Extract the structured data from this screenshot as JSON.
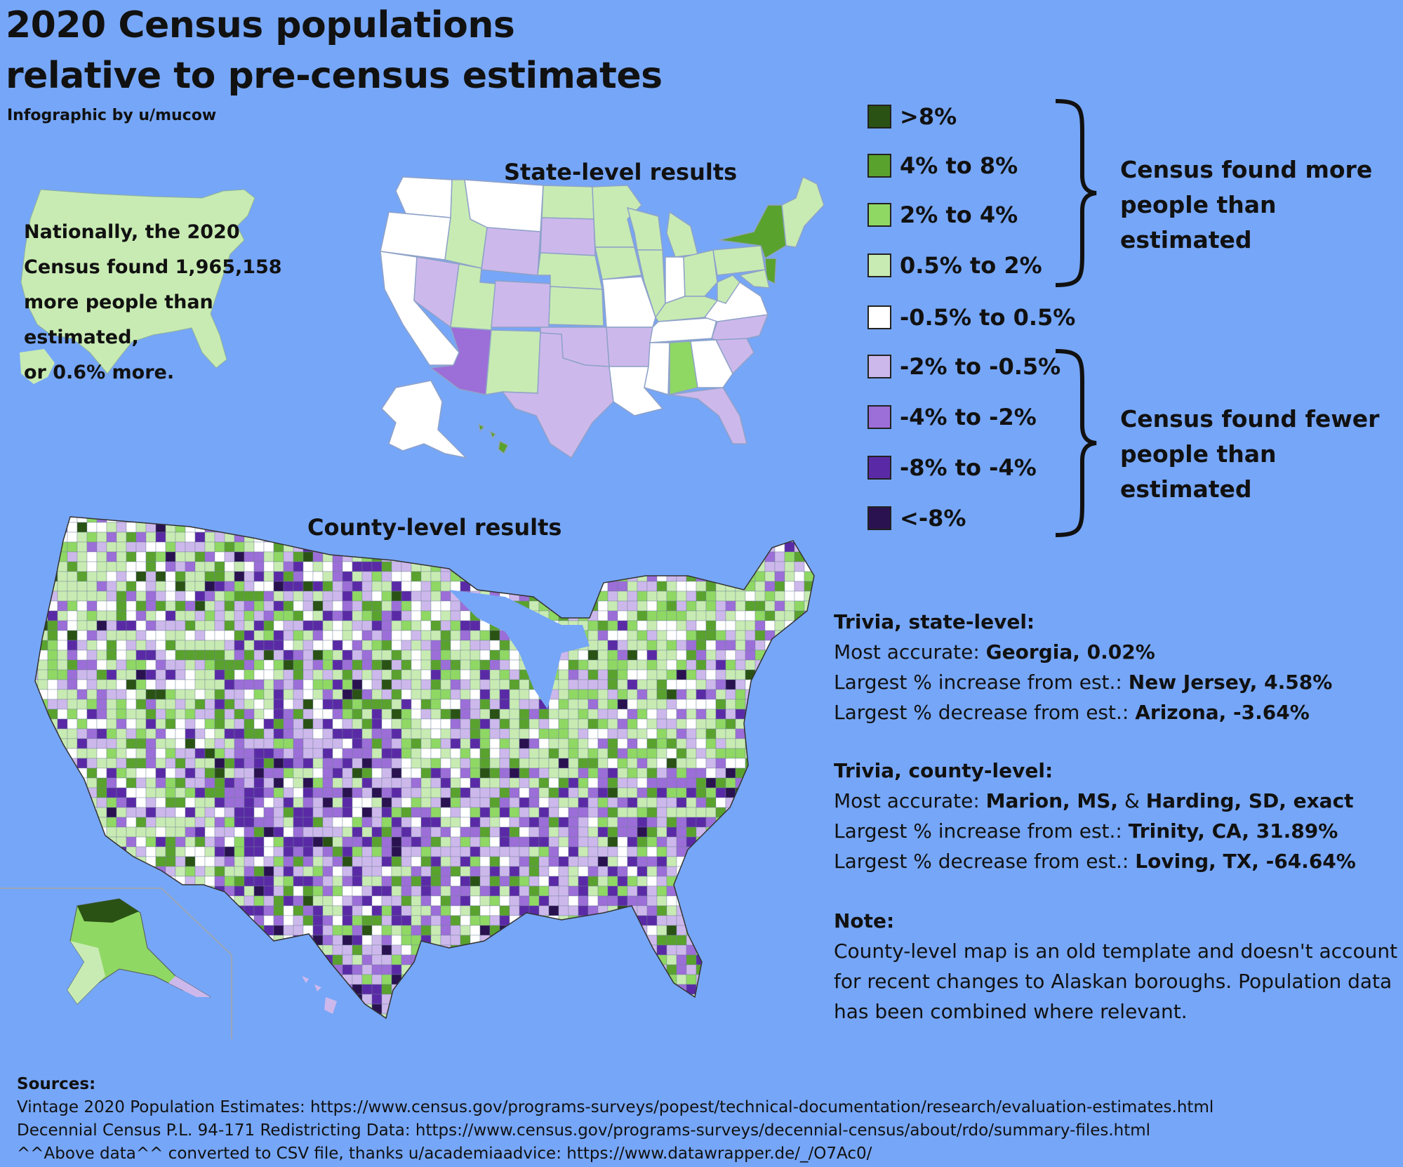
{
  "title_line1": "2020 Census populations",
  "title_line2": "relative to pre-census estimates",
  "byline": "Infographic by u/mucow",
  "national": {
    "line1": "Nationally, the 2020",
    "line2": "Census found 1,965,158",
    "line3": "more people than estimated,",
    "line4": "or 0.6% more."
  },
  "state_map_title": "State-level results",
  "county_map_title": "County-level results",
  "legend": [
    {
      "label": ">8%",
      "color": "#2a5214"
    },
    {
      "label": "4% to 8%",
      "color": "#5aa22e"
    },
    {
      "label": "2% to 4%",
      "color": "#8fd864"
    },
    {
      "label": "0.5% to 2%",
      "color": "#c8ebb3"
    },
    {
      "label": "-0.5% to 0.5%",
      "color": "#ffffff"
    },
    {
      "label": "-2% to -0.5%",
      "color": "#cdb8ec"
    },
    {
      "label": "-4% to -2%",
      "color": "#9c6ed8"
    },
    {
      "label": "-8% to -4%",
      "color": "#5a2aa6"
    },
    {
      "label": "<-8%",
      "color": "#2a1250"
    }
  ],
  "brace_more": {
    "line1": "Census found more",
    "line2": "people than estimated"
  },
  "brace_fewer": {
    "line1": "Census found fewer",
    "line2": "people than estimated"
  },
  "trivia_state": {
    "heading": "Trivia, state-level:",
    "l1_prefix": "Most accurate: ",
    "l1_value": "Georgia, 0.02%",
    "l2_prefix": "Largest % increase from est.: ",
    "l2_value": "New Jersey, 4.58%",
    "l3_prefix": "Largest % decrease from est.: ",
    "l3_value": "Arizona, -3.64%"
  },
  "trivia_county": {
    "heading": "Trivia, county-level:",
    "l1_prefix": "Most accurate: ",
    "l1_value_a": "Marion, MS,",
    "l1_amp": " & ",
    "l1_value_b": "Harding, SD, exact",
    "l2_prefix": "Largest % increase from est.: ",
    "l2_value": "Trinity, CA, 31.89%",
    "l3_prefix": "Largest % decrease from est.: ",
    "l3_value": "Loving, TX, -64.64%"
  },
  "note": {
    "heading": "Note:",
    "line1": "County-level map is an old template and doesn't account",
    "line2": "for recent changes to Alaskan boroughs. Population data",
    "line3": "has been combined where relevant."
  },
  "sources": {
    "heading": "Sources:",
    "line1": "Vintage 2020 Population Estimates: https://www.census.gov/programs-surveys/popest/technical-documentation/research/evaluation-estimates.html",
    "line2": "Decennial Census P.L. 94-171 Redistricting Data: https://www.census.gov/programs-surveys/decennial-census/about/rdo/summary-files.html",
    "line3": "^^Above data^^ converted to CSV file, thanks u/academiaadvice: https://www.datawrapper.de/_/O7Ac0/"
  },
  "colors": {
    "background": "#76a6f7",
    "national_map": "#c8ebb3"
  }
}
